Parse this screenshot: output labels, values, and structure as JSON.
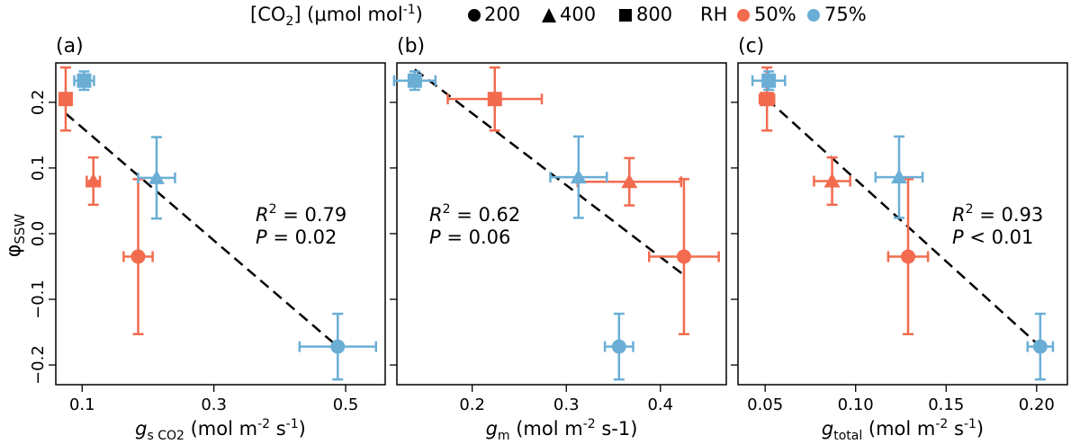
{
  "legend": {
    "co2_label_pre": "[CO",
    "co2_label_sub": "2",
    "co2_label_post": "] (μmol mol",
    "co2_label_sup": "-1",
    "co2_label_close": ")",
    "co2_levels": [
      {
        "marker": "circle",
        "label": "200"
      },
      {
        "marker": "triangle",
        "label": "400"
      },
      {
        "marker": "square",
        "label": "800"
      }
    ],
    "rh_label": "RH",
    "rh_levels": [
      {
        "color": "#f26b4f",
        "label": "50%"
      },
      {
        "color": "#6aaed6",
        "label": "75%"
      }
    ]
  },
  "colors": {
    "rh50": "#f26b4f",
    "rh75": "#6aaed6",
    "fit_line": "#000000"
  },
  "ylabel": {
    "main": "φ",
    "sub": "SSW"
  },
  "yticks": [
    "0.2",
    "0.1",
    "0.0",
    "−0.1",
    "−0.2"
  ],
  "chart_data": [
    {
      "type": "scatter",
      "panel_label": "(a)",
      "xlabel": {
        "main": "g",
        "sub": "s CO2",
        "units": " (mol m",
        "sup": "-2",
        "tail": " s",
        "sup2": "-1",
        "close": ")"
      },
      "xlim": [
        0.06,
        0.56
      ],
      "ylim": [
        -0.23,
        0.26
      ],
      "xticks": [
        0.1,
        0.3,
        0.5
      ],
      "xtick_labels": [
        "0.1",
        "0.3",
        "0.5"
      ],
      "yticks": [
        0.2,
        0.1,
        0.0,
        -0.1,
        -0.2
      ],
      "points": [
        {
          "rh": "50%",
          "co2": 200,
          "x": 0.185,
          "y": -0.035,
          "xerr": 0.022,
          "yerr": 0.118
        },
        {
          "rh": "50%",
          "co2": 400,
          "x": 0.117,
          "y": 0.08,
          "xerr": 0.01,
          "yerr": 0.036
        },
        {
          "rh": "50%",
          "co2": 800,
          "x": 0.075,
          "y": 0.205,
          "xerr": 0.008,
          "yerr": 0.048
        },
        {
          "rh": "75%",
          "co2": 200,
          "x": 0.488,
          "y": -0.172,
          "xerr": 0.058,
          "yerr": 0.05
        },
        {
          "rh": "75%",
          "co2": 400,
          "x": 0.213,
          "y": 0.085,
          "xerr": 0.028,
          "yerr": 0.062
        },
        {
          "rh": "75%",
          "co2": 800,
          "x": 0.103,
          "y": 0.233,
          "xerr": 0.015,
          "yerr": 0.014
        }
      ],
      "fit": {
        "x": [
          0.075,
          0.488
        ],
        "y": [
          0.183,
          -0.172
        ]
      },
      "stats": {
        "r2_label": "R",
        "r2_sup": "2",
        "r2_value": " = 0.79",
        "p_label": "P",
        "p_value": " = 0.02"
      }
    },
    {
      "type": "scatter",
      "panel_label": "(b)",
      "xlabel": {
        "main": "g",
        "sub": "m",
        "units": " (mol m",
        "sup": "-2",
        "tail": " s-1)",
        "sup2": "",
        "close": ""
      },
      "xlim": [
        0.12,
        0.47
      ],
      "ylim": [
        -0.23,
        0.26
      ],
      "xticks": [
        0.2,
        0.3,
        0.4
      ],
      "xtick_labels": [
        "0.2",
        "0.3",
        "0.4"
      ],
      "yticks": [
        0.2,
        0.1,
        0.0,
        -0.1,
        -0.2
      ],
      "points": [
        {
          "rh": "50%",
          "co2": 200,
          "x": 0.425,
          "y": -0.035,
          "xerr": 0.037,
          "yerr": 0.118
        },
        {
          "rh": "50%",
          "co2": 400,
          "x": 0.367,
          "y": 0.079,
          "xerr": 0.055,
          "yerr": 0.036
        },
        {
          "rh": "50%",
          "co2": 800,
          "x": 0.224,
          "y": 0.205,
          "xerr": 0.05,
          "yerr": 0.048
        },
        {
          "rh": "75%",
          "co2": 200,
          "x": 0.356,
          "y": -0.172,
          "xerr": 0.015,
          "yerr": 0.05
        },
        {
          "rh": "75%",
          "co2": 400,
          "x": 0.313,
          "y": 0.086,
          "xerr": 0.03,
          "yerr": 0.062
        },
        {
          "rh": "75%",
          "co2": 800,
          "x": 0.139,
          "y": 0.233,
          "xerr": 0.022,
          "yerr": 0.014
        }
      ],
      "fit": {
        "x": [
          0.139,
          0.425
        ],
        "y": [
          0.25,
          -0.063
        ]
      },
      "stats": {
        "r2_label": "R",
        "r2_sup": "2",
        "r2_value": " = 0.62",
        "p_label": "P",
        "p_value": " = 0.06"
      }
    },
    {
      "type": "scatter",
      "panel_label": "(c)",
      "xlabel": {
        "main": "g",
        "sub": "total",
        "units": " (mol m",
        "sup": "-2",
        "tail": " s",
        "sup2": "-1",
        "close": ")"
      },
      "xlim": [
        0.035,
        0.217
      ],
      "ylim": [
        -0.23,
        0.26
      ],
      "xticks": [
        0.05,
        0.1,
        0.15,
        0.2
      ],
      "xtick_labels": [
        "0.05",
        "0.10",
        "0.15",
        "0.20"
      ],
      "yticks": [
        0.2,
        0.1,
        0.0,
        -0.1,
        -0.2
      ],
      "points": [
        {
          "rh": "50%",
          "co2": 200,
          "x": 0.129,
          "y": -0.035,
          "xerr": 0.011,
          "yerr": 0.118
        },
        {
          "rh": "50%",
          "co2": 400,
          "x": 0.087,
          "y": 0.08,
          "xerr": 0.01,
          "yerr": 0.036
        },
        {
          "rh": "50%",
          "co2": 800,
          "x": 0.051,
          "y": 0.205,
          "xerr": 0.004,
          "yerr": 0.048
        },
        {
          "rh": "75%",
          "co2": 200,
          "x": 0.202,
          "y": -0.172,
          "xerr": 0.007,
          "yerr": 0.05
        },
        {
          "rh": "75%",
          "co2": 400,
          "x": 0.124,
          "y": 0.086,
          "xerr": 0.013,
          "yerr": 0.062
        },
        {
          "rh": "75%",
          "co2": 800,
          "x": 0.052,
          "y": 0.233,
          "xerr": 0.009,
          "yerr": 0.014
        }
      ],
      "fit": {
        "x": [
          0.051,
          0.202
        ],
        "y": [
          0.205,
          -0.172
        ]
      },
      "stats": {
        "r2_label": "R",
        "r2_sup": "2",
        "r2_value": " = 0.93",
        "p_label": "P",
        "p_value": " < 0.01"
      }
    }
  ]
}
